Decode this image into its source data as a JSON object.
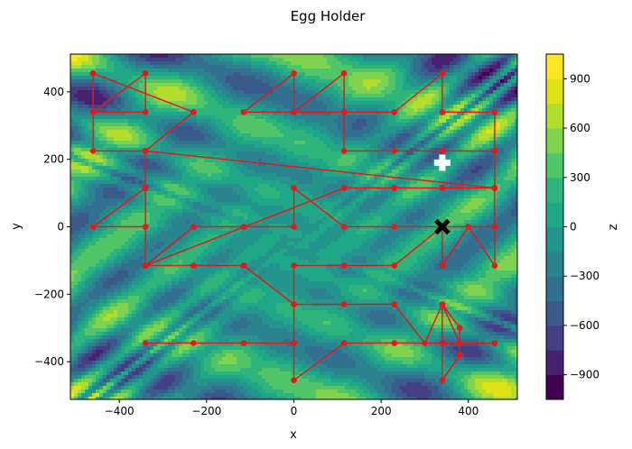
{
  "chart_data": {
    "type": "contour",
    "title": "Egg Holder",
    "xlabel": "x",
    "ylabel": "y",
    "xlim": [
      -512,
      512
    ],
    "ylim": [
      -512,
      512
    ],
    "xticks": [
      -400,
      -200,
      0,
      200,
      400
    ],
    "yticks": [
      -400,
      -200,
      0,
      200,
      400
    ],
    "colorbar": {
      "label": "z",
      "range": [
        -1050,
        1050
      ],
      "ticks": [
        -900,
        -600,
        -300,
        0,
        300,
        600,
        900
      ],
      "levels": [
        -1050,
        -900,
        -750,
        -600,
        -450,
        -300,
        -150,
        0,
        150,
        300,
        450,
        600,
        750,
        900,
        1050
      ],
      "colors": [
        "#440154",
        "#482172",
        "#423f85",
        "#3a5a8c",
        "#31708e",
        "#2a838e",
        "#23958c",
        "#1fa787",
        "#2fb47c",
        "#52c569",
        "#7fd34e",
        "#b2dd2d",
        "#dde318",
        "#fde725"
      ]
    },
    "path": {
      "color": "#e31a1c",
      "points": [
        [
          -460,
          455
        ],
        [
          -460,
          340
        ],
        [
          -340,
          340
        ],
        [
          -340,
          455
        ],
        [
          -460,
          340
        ],
        [
          -460,
          225
        ],
        [
          -340,
          225
        ],
        [
          -340,
          115
        ],
        [
          -460,
          0
        ],
        [
          -340,
          0
        ],
        [
          -340,
          115
        ],
        [
          -340,
          -115
        ],
        [
          -230,
          0
        ],
        [
          -115,
          0
        ],
        [
          0,
          0
        ],
        [
          0,
          115
        ],
        [
          115,
          0
        ],
        [
          230,
          0
        ],
        [
          340,
          0
        ],
        [
          460,
          0
        ],
        [
          460,
          115
        ],
        [
          460,
          225
        ],
        [
          340,
          225
        ],
        [
          230,
          225
        ],
        [
          115,
          225
        ],
        [
          115,
          340
        ],
        [
          0,
          340
        ],
        [
          -115,
          340
        ],
        [
          0,
          455
        ],
        [
          0,
          340
        ],
        [
          115,
          455
        ],
        [
          115,
          340
        ],
        [
          230,
          340
        ],
        [
          340,
          455
        ],
        [
          340,
          340
        ],
        [
          460,
          340
        ],
        [
          460,
          225
        ],
        [
          460,
          -115
        ],
        [
          400,
          0
        ],
        [
          340,
          -115
        ],
        [
          340,
          0
        ],
        [
          230,
          -115
        ],
        [
          115,
          -115
        ],
        [
          0,
          -115
        ],
        [
          0,
          -230
        ],
        [
          0,
          -345
        ],
        [
          -115,
          -345
        ],
        [
          -230,
          -345
        ],
        [
          -340,
          -345
        ],
        [
          0,
          -345
        ],
        [
          0,
          -455
        ],
        [
          115,
          -345
        ],
        [
          230,
          -345
        ],
        [
          340,
          -345
        ],
        [
          460,
          -345
        ],
        [
          380,
          -345
        ],
        [
          340,
          -230
        ],
        [
          340,
          -455
        ],
        [
          380,
          -380
        ],
        [
          380,
          -300
        ],
        [
          340,
          -230
        ],
        [
          300,
          -345
        ],
        [
          230,
          -230
        ],
        [
          115,
          -230
        ],
        [
          0,
          -230
        ],
        [
          -115,
          -115
        ],
        [
          -230,
          -115
        ],
        [
          -340,
          -115
        ],
        [
          115,
          115
        ],
        [
          230,
          115
        ],
        [
          340,
          115
        ],
        [
          460,
          115
        ],
        [
          -340,
          225
        ],
        [
          -230,
          340
        ],
        [
          -460,
          455
        ]
      ]
    },
    "markers": [
      {
        "name": "best-found",
        "symbol": "plus",
        "color": "#ffffff",
        "x": 340,
        "y": 190
      },
      {
        "name": "global-minimum",
        "symbol": "x",
        "color": "#000000",
        "x": 340,
        "y": 0
      }
    ]
  }
}
